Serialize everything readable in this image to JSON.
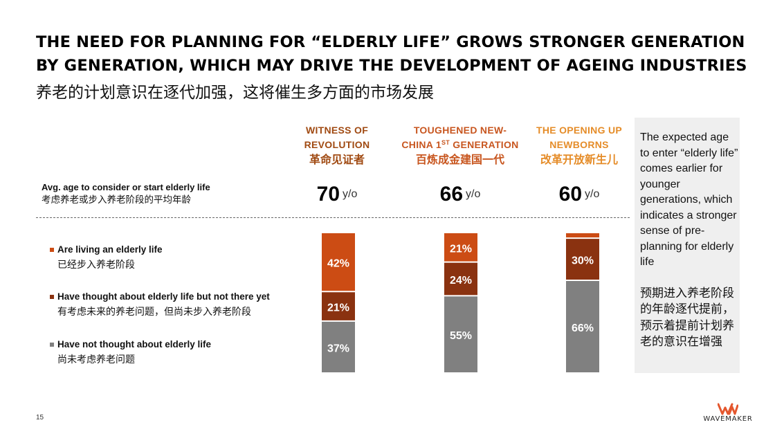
{
  "title": {
    "line1": "THE NEED FOR PLANNING FOR “ELDERLY LIFE” GROWS STRONGER GENERATION",
    "line2": "BY GENERATION, WHICH MAY DRIVE THE DEVELOPMENT OF AGEING INDUSTRIES",
    "cn": "养老的计划意识在逐代加强，这将催生多方面的市场发展"
  },
  "generations": [
    {
      "en_line1": "WITNESS OF",
      "en_line2": "REVOLUTION",
      "en_sup": "",
      "en_line2_rest": "",
      "cn": "革命见证者",
      "color": "#a04a12"
    },
    {
      "en_line1": "TOUGHENED NEW-",
      "en_line2": "CHINA 1",
      "en_sup": "ST",
      "en_line2_rest": " GENERATION",
      "cn": "百炼成金建国一代",
      "color": "#c8561f"
    },
    {
      "en_line1": "THE OPENING UP",
      "en_line2": "NEWBORNS",
      "en_sup": "",
      "en_line2_rest": "",
      "cn": "改革开放新生儿",
      "color": "#e58c28"
    }
  ],
  "avg_age": {
    "label_en": "Avg. age to consider or start elderly life",
    "label_cn": "考虑养老或步入养老阶段的平均年龄",
    "unit": "y/o",
    "values": [
      "70",
      "66",
      "60"
    ]
  },
  "legend": [
    {
      "en": "Are living an elderly life",
      "cn": "已经步入养老阶段",
      "color": "#cc4c14"
    },
    {
      "en": "Have thought about elderly life but not there yet",
      "cn": "有考虑未来的养老问题，但尚未步入养老阶段",
      "color": "#8a3210"
    },
    {
      "en": "Have not thought about elderly life",
      "cn": "尚未考虑养老问题",
      "color": "#808080"
    }
  ],
  "chart_data": {
    "type": "bar",
    "stacked": true,
    "categories": [
      "WITNESS OF REVOLUTION",
      "TOUGHENED NEW-CHINA 1ST GENERATION",
      "THE OPENING UP NEWBORNS"
    ],
    "series": [
      {
        "name": "Have not thought about elderly life",
        "color": "#808080",
        "values": [
          37,
          55,
          66
        ],
        "labels": [
          "37%",
          "55%",
          "66%"
        ]
      },
      {
        "name": "Have thought about elderly life but not there yet",
        "color": "#8a3210",
        "values": [
          21,
          24,
          30
        ],
        "labels": [
          "21%",
          "24%",
          "30%"
        ]
      },
      {
        "name": "Are living an elderly life",
        "color": "#cc4c14",
        "values": [
          42,
          21,
          4
        ],
        "labels": [
          "42%",
          "21%",
          ""
        ]
      }
    ],
    "ylim": [
      0,
      100
    ],
    "unit": "%",
    "grid": false,
    "legend_position": "left"
  },
  "sidebar": {
    "text_en": "The expected age to enter “elderly life” comes earlier for younger generations, which indicates a stronger sense of pre-planning for elderly life",
    "text_cn": "预期进入养老阶段的年龄逐代提前，预示着提前计划养老的意识在增强"
  },
  "footer": {
    "page_number": "15",
    "logo_text": "WAVEMAKER",
    "logo_color": "#e4572e"
  }
}
